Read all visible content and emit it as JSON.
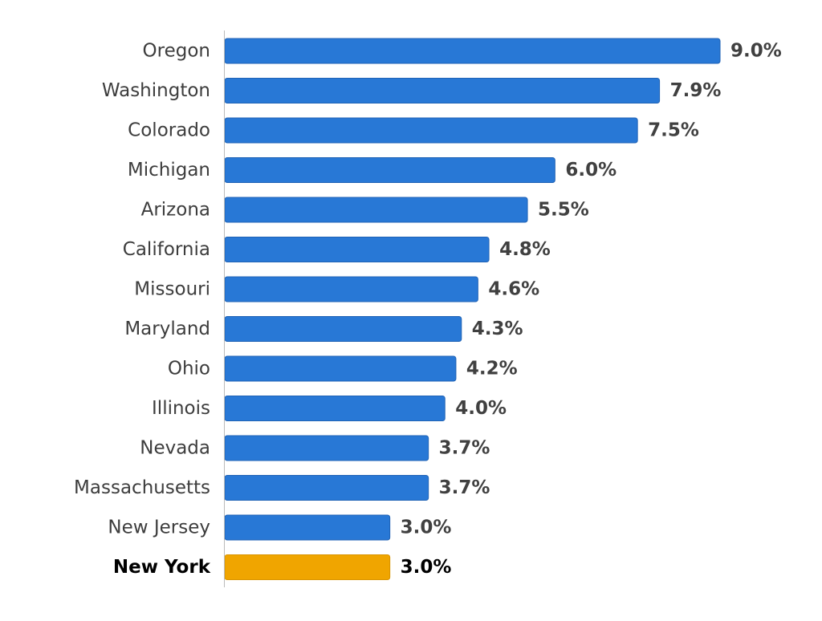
{
  "chart_data": {
    "type": "bar",
    "orientation": "horizontal",
    "categories": [
      "Oregon",
      "Washington",
      "Colorado",
      "Michigan",
      "Arizona",
      "California",
      "Missouri",
      "Maryland",
      "Ohio",
      "Illinois",
      "Nevada",
      "Massachusetts",
      "New Jersey",
      "New York"
    ],
    "values": [
      9.0,
      7.9,
      7.5,
      6.0,
      5.5,
      4.8,
      4.6,
      4.3,
      4.2,
      4.0,
      3.7,
      3.7,
      3.0,
      3.0
    ],
    "value_labels": [
      "9.0%",
      "7.9%",
      "7.5%",
      "6.0%",
      "5.5%",
      "4.8%",
      "4.6%",
      "4.3%",
      "4.2%",
      "4.0%",
      "3.7%",
      "3.7%",
      "3.0%",
      "3.0%"
    ],
    "highlight": "New York",
    "xlim": [
      0,
      9.0
    ],
    "grid": false,
    "legend": false,
    "colors": {
      "bar": "#2878d6",
      "bar_stroke": "#1f62b5",
      "highlight": "#f0a500",
      "highlight_stroke": "#d99400",
      "axis": "#bbbbbb"
    }
  }
}
